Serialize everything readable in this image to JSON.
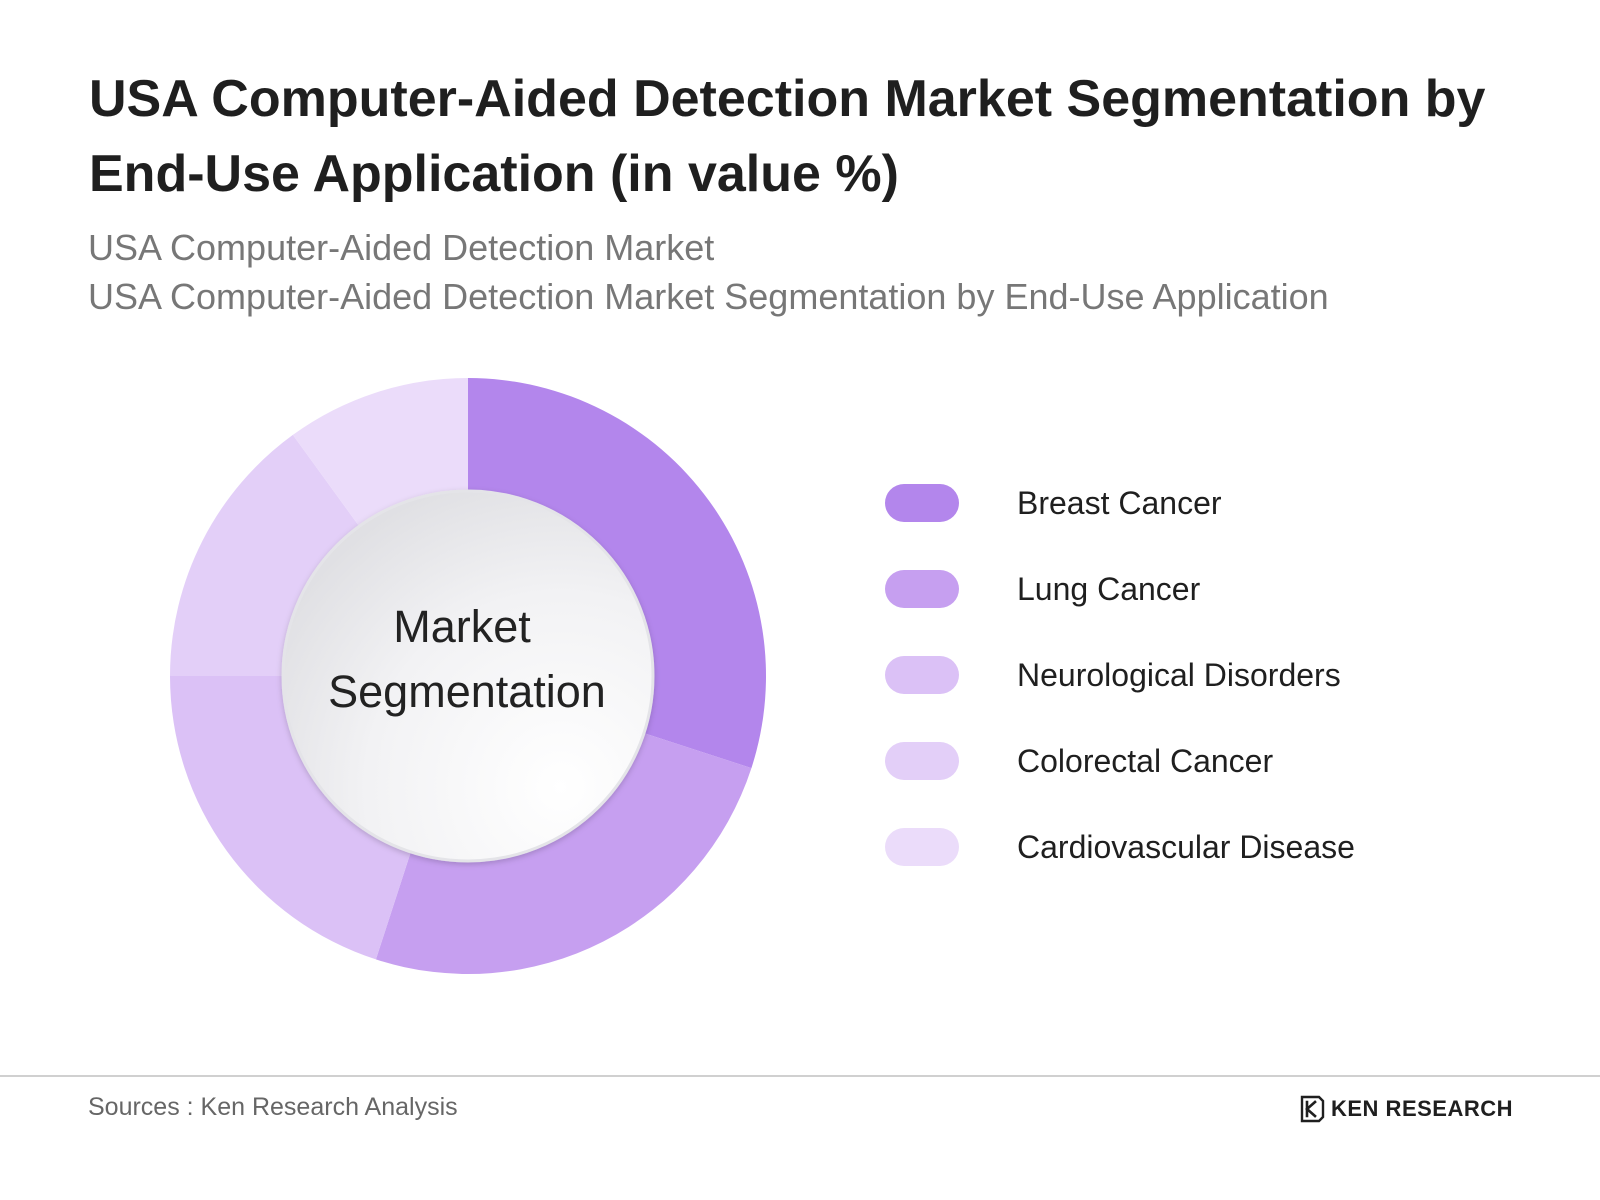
{
  "header": {
    "title": "USA Computer-Aided Detection Market Segmentation by End-Use Application (in value %)",
    "subtitle_1": "USA Computer-Aided Detection Market",
    "subtitle_2": "USA Computer-Aided Detection Market Segmentation by End-Use Application"
  },
  "chart_data": {
    "type": "pie",
    "variant": "donut",
    "center_label_line_1": "Market",
    "center_label_line_2": "Segmentation",
    "categories": [
      "Breast Cancer",
      "Lung Cancer",
      "Neurological Disorders",
      "Colorectal Cancer",
      "Cardiovascular Disease"
    ],
    "values": [
      30,
      25,
      20,
      15,
      10
    ],
    "colors": [
      "#b386ec",
      "#c69ff0",
      "#dbc1f6",
      "#e3cff8",
      "#ebdcfa"
    ],
    "legend_position": "right"
  },
  "footer": {
    "sources": "Sources : Ken Research Analysis",
    "brand": "KEN RESEARCH",
    "brand_icon": "ken-research-logo-icon"
  }
}
